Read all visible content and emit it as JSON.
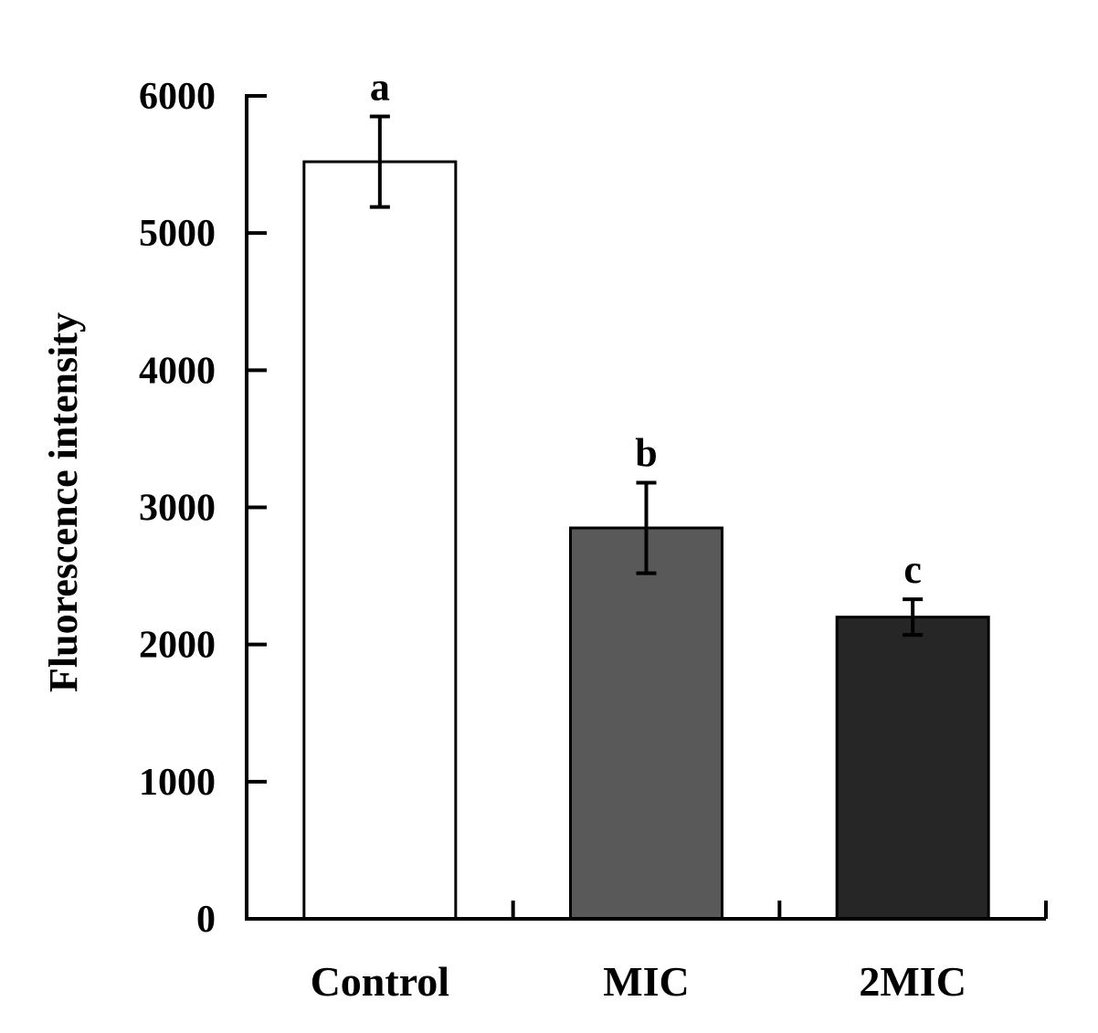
{
  "chart_data": {
    "type": "bar",
    "title": "",
    "xlabel": "",
    "ylabel": "Fluorescence intensity",
    "ylim": [
      0,
      6000
    ],
    "yticks": [
      0,
      1000,
      2000,
      3000,
      4000,
      5000,
      6000
    ],
    "categories": [
      "Control",
      "MIC",
      "2MIC"
    ],
    "values": [
      5520,
      2850,
      2200
    ],
    "errors": [
      330,
      330,
      130
    ],
    "significance_letters": [
      "a",
      "b",
      "c"
    ],
    "bar_colors": [
      "#ffffff",
      "#595959",
      "#262626"
    ],
    "grid": false,
    "legend": "none"
  }
}
